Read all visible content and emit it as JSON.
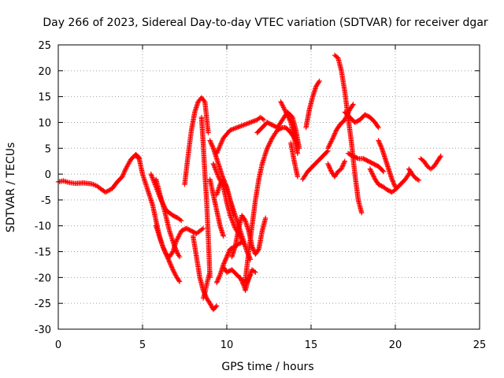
{
  "chart_data": {
    "type": "scatter",
    "title": "Day 266 of 2023, Sidereal Day-to-day VTEC variation (SDTVAR) for receiver dgar",
    "xlabel": "GPS time / hours",
    "ylabel": "SDTVAR / TECUs",
    "xlim": [
      0,
      25
    ],
    "ylim": [
      -30,
      25
    ],
    "xticks": [
      0,
      5,
      10,
      15,
      20,
      25
    ],
    "yticks": [
      -30,
      -25,
      -20,
      -15,
      -10,
      -5,
      0,
      5,
      10,
      15,
      20,
      25
    ],
    "grid": true,
    "marker": "plus",
    "color": "#ff0000",
    "series": [
      {
        "x": [
          0.0,
          0.3,
          0.6,
          1.0,
          1.5,
          2.0,
          2.3,
          2.5,
          2.8,
          3.2,
          3.5,
          3.8,
          4.0,
          4.3,
          4.6,
          4.8
        ],
        "y": [
          -1.5,
          -1.3,
          -1.6,
          -1.8,
          -1.7,
          -1.9,
          -2.3,
          -2.8,
          -3.5,
          -2.8,
          -1.5,
          -0.5,
          1.0,
          2.8,
          3.8,
          3.2
        ]
      },
      {
        "x": [
          4.6,
          4.8,
          5.0,
          5.3,
          5.6,
          5.8,
          6.0,
          6.2,
          6.4,
          6.6,
          6.8,
          7.0,
          7.3,
          7.6,
          7.9,
          8.2,
          8.4,
          8.6
        ],
        "y": [
          3.5,
          3.0,
          0.0,
          -3.0,
          -6.0,
          -9.0,
          -12.0,
          -14.0,
          -15.5,
          -16.0,
          -15.0,
          -13.0,
          -11.0,
          -10.5,
          -11.0,
          -11.5,
          -11.0,
          -10.5
        ]
      },
      {
        "x": [
          5.8,
          6.0,
          6.3,
          6.6,
          6.9,
          7.1,
          7.2
        ],
        "y": [
          -1.0,
          -3.5,
          -7.0,
          -11.0,
          -14.0,
          -15.5,
          -16.0
        ]
      },
      {
        "x": [
          5.5,
          5.8,
          6.1,
          6.4,
          6.8,
          7.1,
          7.3
        ],
        "y": [
          0.0,
          -2.5,
          -5.0,
          -7.0,
          -8.0,
          -8.5,
          -9.0
        ]
      },
      {
        "x": [
          5.8,
          6.0,
          6.2,
          6.4,
          6.6,
          6.8,
          7.0,
          7.2
        ],
        "y": [
          -10.0,
          -12.0,
          -14.0,
          -15.5,
          -17.0,
          -18.5,
          -19.8,
          -20.8
        ]
      },
      {
        "x": [
          7.5,
          7.7,
          7.9,
          8.1,
          8.3,
          8.5,
          8.7,
          8.9
        ],
        "y": [
          -2.0,
          3.5,
          8.5,
          12.0,
          14.0,
          14.8,
          14.0,
          8.0
        ]
      },
      {
        "x": [
          8.0,
          8.2,
          8.4,
          8.6,
          8.8,
          9.0,
          9.2,
          9.4
        ],
        "y": [
          -12.0,
          -16.0,
          -20.0,
          -22.5,
          -24.0,
          -25.0,
          -26.2,
          -25.5
        ]
      },
      {
        "x": [
          8.6,
          8.7,
          8.8,
          8.9,
          9.0
        ],
        "y": [
          -24.0,
          -23.0,
          -21.5,
          -20.0,
          -19.0
        ]
      },
      {
        "x": [
          8.5,
          8.6,
          8.7,
          8.8,
          8.9,
          9.0
        ],
        "y": [
          11.0,
          6.0,
          0.0,
          -5.0,
          -12.0,
          -20.0
        ]
      },
      {
        "x": [
          9.0,
          9.2,
          9.4,
          9.6,
          9.8,
          10.0,
          10.2,
          10.4,
          10.6,
          10.8,
          11.0,
          11.2,
          11.4
        ],
        "y": [
          6.5,
          5.0,
          3.0,
          1.0,
          -1.0,
          -3.0,
          -5.0,
          -7.0,
          -9.0,
          -11.0,
          -13.0,
          -15.0,
          -16.5
        ]
      },
      {
        "x": [
          9.0,
          9.2,
          9.4,
          9.6,
          9.8
        ],
        "y": [
          -1.0,
          -4.0,
          -7.0,
          -10.0,
          -12.0
        ]
      },
      {
        "x": [
          9.4,
          9.6,
          9.8,
          10.0,
          10.2,
          10.4
        ],
        "y": [
          -4.0,
          -2.0,
          -1.0,
          -2.5,
          -5.0,
          -8.0
        ]
      },
      {
        "x": [
          10.3,
          10.5,
          10.7,
          10.9,
          11.1,
          11.3,
          11.5,
          11.7,
          11.9,
          12.1,
          12.3
        ],
        "y": [
          -16.0,
          -14.0,
          -10.5,
          -8.0,
          -9.0,
          -11.0,
          -14.0,
          -15.5,
          -14.5,
          -11.0,
          -8.5
        ]
      },
      {
        "x": [
          9.2,
          9.5,
          9.8,
          10.0,
          10.2,
          10.5,
          10.8,
          11.0
        ],
        "y": [
          2.0,
          -0.5,
          -2.5,
          -5.5,
          -8.0,
          -10.5,
          -12.0,
          -13.5
        ]
      },
      {
        "x": [
          9.8,
          10.0,
          10.3,
          10.6,
          10.9,
          11.2,
          11.4
        ],
        "y": [
          -18.0,
          -19.0,
          -18.5,
          -19.5,
          -20.5,
          -21.0,
          -19.5
        ]
      },
      {
        "x": [
          10.8,
          11.0,
          11.1,
          11.3,
          11.5,
          11.7
        ],
        "y": [
          -20.0,
          -21.5,
          -22.5,
          -20.0,
          -18.5,
          -19.0
        ]
      },
      {
        "x": [
          9.4,
          9.6,
          9.8,
          10.0,
          10.2,
          10.5,
          10.7,
          11.0
        ],
        "y": [
          -21.0,
          -19.5,
          -17.5,
          -16.0,
          -14.5,
          -14.0,
          -13.5,
          -13.0
        ]
      },
      {
        "x": [
          11.1,
          11.3,
          11.5,
          11.7,
          11.9,
          12.1,
          12.4,
          12.7,
          13.0,
          13.3,
          13.5,
          13.8,
          14.0,
          14.2
        ],
        "y": [
          -20.5,
          -15.0,
          -10.0,
          -5.0,
          -1.0,
          2.0,
          5.0,
          7.0,
          8.5,
          9.0,
          9.0,
          8.0,
          7.0,
          6.0
        ]
      },
      {
        "x": [
          9.4,
          9.8,
          10.2,
          10.6,
          11.0,
          11.4,
          11.8,
          12.0,
          12.2
        ],
        "y": [
          4.0,
          7.0,
          8.5,
          9.0,
          9.5,
          10.0,
          10.5,
          11.0,
          10.5
        ]
      },
      {
        "x": [
          11.8,
          12.1,
          12.4,
          12.7,
          13.0,
          13.3,
          13.6,
          13.9,
          14.1,
          14.3
        ],
        "y": [
          8.0,
          9.0,
          10.0,
          9.5,
          9.0,
          10.5,
          12.0,
          11.0,
          8.5,
          5.0
        ]
      },
      {
        "x": [
          13.2,
          13.5,
          13.8,
          14.0,
          14.2
        ],
        "y": [
          14.0,
          12.0,
          10.0,
          7.0,
          4.0
        ]
      },
      {
        "x": [
          13.8,
          14.0,
          14.2
        ],
        "y": [
          6.0,
          2.5,
          -0.5
        ]
      },
      {
        "x": [
          14.7,
          14.9,
          15.1,
          15.3,
          15.5
        ],
        "y": [
          9.0,
          12.5,
          15.0,
          17.0,
          18.0
        ]
      },
      {
        "x": [
          14.5,
          14.8,
          15.1,
          15.4,
          15.7,
          16.0
        ],
        "y": [
          -1.0,
          0.5,
          1.5,
          2.5,
          3.5,
          4.5
        ]
      },
      {
        "x": [
          16.0,
          16.3,
          16.5,
          16.7,
          17.0,
          17.3,
          17.5
        ],
        "y": [
          5.0,
          7.0,
          8.5,
          9.5,
          10.5,
          12.5,
          13.5
        ]
      },
      {
        "x": [
          16.4,
          16.6,
          16.8,
          17.0,
          17.2,
          17.4,
          17.6,
          17.8,
          18.0
        ],
        "y": [
          23.0,
          22.5,
          20.0,
          16.0,
          11.0,
          6.0,
          0.0,
          -5.0,
          -7.5
        ]
      },
      {
        "x": [
          16.0,
          16.2,
          16.4,
          16.6,
          16.8,
          17.0
        ],
        "y": [
          2.0,
          0.5,
          -0.5,
          0.5,
          1.0,
          2.5
        ]
      },
      {
        "x": [
          17.0,
          17.3,
          17.6,
          17.9,
          18.2,
          18.5,
          18.8,
          19.0
        ],
        "y": [
          12.0,
          11.0,
          10.0,
          10.5,
          11.5,
          11.0,
          10.0,
          9.0
        ]
      },
      {
        "x": [
          17.2,
          17.5,
          17.8,
          18.1,
          18.4,
          18.7,
          19.0,
          19.3
        ],
        "y": [
          4.0,
          3.5,
          3.0,
          3.0,
          2.5,
          2.0,
          1.5,
          0.5
        ]
      },
      {
        "x": [
          18.5,
          18.8,
          19.0,
          19.3,
          19.5,
          19.8,
          20.0,
          20.3,
          20.6,
          20.9
        ],
        "y": [
          1.0,
          -1.0,
          -2.0,
          -2.5,
          -3.0,
          -3.5,
          -3.0,
          -2.0,
          -1.0,
          0.5
        ]
      },
      {
        "x": [
          19.0,
          19.2,
          19.4,
          19.6,
          19.8,
          20.0
        ],
        "y": [
          6.5,
          5.0,
          3.0,
          1.0,
          -1.0,
          -2.5
        ]
      },
      {
        "x": [
          20.8,
          21.0,
          21.2,
          21.4
        ],
        "y": [
          1.0,
          0.0,
          -0.8,
          -1.2
        ]
      },
      {
        "x": [
          21.5,
          21.7,
          21.9,
          22.1,
          22.3,
          22.5,
          22.7
        ],
        "y": [
          3.0,
          2.5,
          1.5,
          1.0,
          1.5,
          2.5,
          3.5
        ]
      }
    ]
  }
}
